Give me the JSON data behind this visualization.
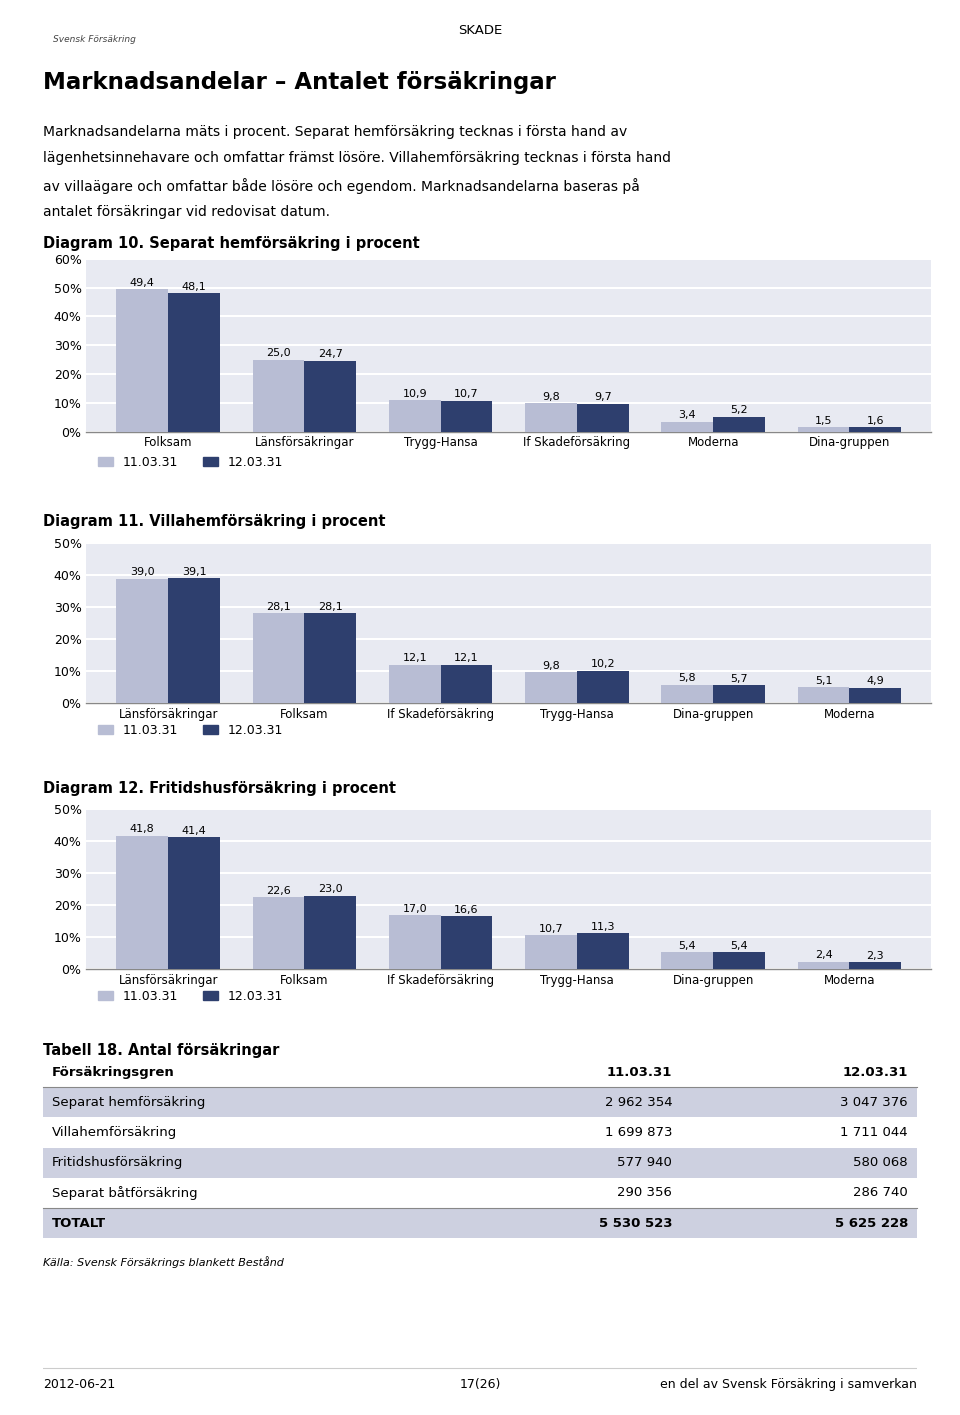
{
  "page_title": "SKADE",
  "main_title": "Marknadsandelar – Antalet försäkringar",
  "body_lines": [
    "Marknadsandelarna mäts i procent. Separat hemförsäkring tecknas i första hand av",
    "lägenhetsinnehavare och omfattar främst lösöre. Villahemförsäkring tecknas i första hand",
    "av villaägare och omfattar både lösöre och egendom. Marknadsandelarna baseras på",
    "antalet försäkringar vid redovisat datum."
  ],
  "diagram10_title": "Diagram 10. Separat hemförsäkring i procent",
  "diagram10_categories": [
    "Folksam",
    "Länsförsäkringar",
    "Trygg-Hansa",
    "If Skadeförsäkring",
    "Moderna",
    "Dina-gruppen"
  ],
  "diagram10_series1": [
    49.4,
    25.0,
    10.9,
    9.8,
    3.4,
    1.5
  ],
  "diagram10_series2": [
    48.1,
    24.7,
    10.7,
    9.7,
    5.2,
    1.6
  ],
  "diagram10_ylim": [
    0,
    60
  ],
  "diagram10_yticks": [
    0,
    10,
    20,
    30,
    40,
    50,
    60
  ],
  "diagram10_ytick_labels": [
    "0%",
    "10%",
    "20%",
    "30%",
    "40%",
    "50%",
    "60%"
  ],
  "diagram11_title": "Diagram 11. Villahemförsäkring i procent",
  "diagram11_categories": [
    "Länsförsäkringar",
    "Folksam",
    "If Skadeförsäkring",
    "Trygg-Hansa",
    "Dina-gruppen",
    "Moderna"
  ],
  "diagram11_series1": [
    39.0,
    28.1,
    12.1,
    9.8,
    5.8,
    5.1
  ],
  "diagram11_series2": [
    39.1,
    28.1,
    12.1,
    10.2,
    5.7,
    4.9
  ],
  "diagram11_ylim": [
    0,
    50
  ],
  "diagram11_yticks": [
    0,
    10,
    20,
    30,
    40,
    50
  ],
  "diagram11_ytick_labels": [
    "0%",
    "10%",
    "20%",
    "30%",
    "40%",
    "50%"
  ],
  "diagram12_title": "Diagram 12. Fritidshusförsäkring i procent",
  "diagram12_categories": [
    "Länsförsäkringar",
    "Folksam",
    "If Skadeförsäkring",
    "Trygg-Hansa",
    "Dina-gruppen",
    "Moderna"
  ],
  "diagram12_series1": [
    41.8,
    22.6,
    17.0,
    10.7,
    5.4,
    2.4
  ],
  "diagram12_series2": [
    41.4,
    23.0,
    16.6,
    11.3,
    5.4,
    2.3
  ],
  "diagram12_ylim": [
    0,
    50
  ],
  "diagram12_yticks": [
    0,
    10,
    20,
    30,
    40,
    50
  ],
  "diagram12_ytick_labels": [
    "0%",
    "10%",
    "20%",
    "30%",
    "40%",
    "50%"
  ],
  "legend_label1": "11.03.31",
  "legend_label2": "12.03.31",
  "color_series1": "#b8bdd4",
  "color_series2": "#2e3f6e",
  "chart_bg_color": "#e8eaf2",
  "grid_color": "#ffffff",
  "table_title": "Tabell 18. Antal försäkringar",
  "table_headers": [
    "Försäkringsgren",
    "11.03.31",
    "12.03.31"
  ],
  "table_rows": [
    [
      "Separat hemförsäkring",
      "2 962 354",
      "3 047 376"
    ],
    [
      "Villahemförsäkring",
      "1 699 873",
      "1 711 044"
    ],
    [
      "Fritidshusförsäkring",
      "577 940",
      "580 068"
    ],
    [
      "Separat båtförsäkring",
      "290 356",
      "286 740"
    ]
  ],
  "table_total": [
    "TOTALT",
    "5 530 523",
    "5 625 228"
  ],
  "table_row_bgs": [
    "#ffffff",
    "#cdd0e0",
    "#ffffff",
    "#cdd0e0",
    "#ffffff",
    "#cdd0e0"
  ],
  "source_text": "Källa: Svensk Försäkrings blankett Bestånd",
  "footer_left": "2012-06-21",
  "footer_center": "17(26)",
  "footer_right": "en del av Svensk Försäkring i samverkan"
}
